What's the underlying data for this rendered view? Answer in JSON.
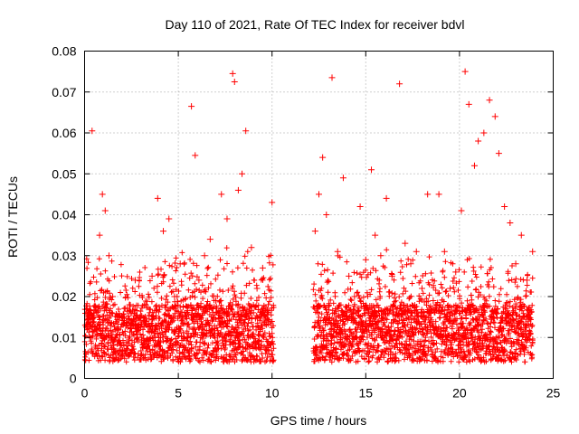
{
  "chart_data": {
    "type": "scatter",
    "title": "Day 110 of 2021, Rate Of TEC Index for receiver bdvl",
    "xlabel": "GPS time / hours",
    "ylabel": "ROTI / TECUs",
    "xlim": [
      0,
      25
    ],
    "ylim": [
      0,
      0.08
    ],
    "xticks": [
      0,
      5,
      10,
      15,
      20,
      25
    ],
    "yticks": [
      0,
      0.01,
      0.02,
      0.03,
      0.04,
      0.05,
      0.06,
      0.07,
      0.08
    ],
    "xtick_labels": [
      "0",
      "5",
      "10",
      "15",
      "20",
      "25"
    ],
    "ytick_labels": [
      "0",
      "0.01",
      "0.02",
      "0.03",
      "0.04",
      "0.05",
      "0.06",
      "0.07",
      "0.08"
    ],
    "grid": true,
    "marker": "+",
    "color": "#ff0000",
    "series": [
      {
        "x": [
          0.15,
          0.4,
          0.8,
          0.95,
          1.1,
          1.3,
          1.5,
          1.8,
          2.1,
          2.4,
          2.7,
          3.0,
          3.3,
          3.6,
          3.9,
          4.2,
          4.5,
          4.8,
          5.1,
          5.4,
          5.7,
          5.9,
          6.1,
          6.4,
          6.7,
          7.0,
          7.3,
          7.6,
          7.9,
          8.0,
          8.2,
          8.4,
          8.6,
          8.9,
          9.2,
          9.5,
          9.8,
          10.0,
          12.3,
          12.5,
          12.7,
          12.9,
          13.2,
          13.5,
          13.8,
          14.1,
          14.4,
          14.7,
          15.0,
          15.3,
          15.5,
          15.8,
          16.1,
          16.4,
          16.8,
          17.1,
          17.4,
          17.7,
          18.0,
          18.3,
          18.6,
          18.9,
          19.2,
          19.5,
          19.8,
          20.1,
          20.3,
          20.5,
          20.8,
          21.0,
          21.3,
          21.6,
          21.9,
          22.1,
          22.4,
          22.7,
          23.0,
          23.3,
          23.6,
          23.9
        ],
        "y": [
          0.015,
          0.0605,
          0.035,
          0.045,
          0.041,
          0.03,
          0.02,
          0.012,
          0.008,
          0.018,
          0.024,
          0.015,
          0.009,
          0.025,
          0.044,
          0.036,
          0.039,
          0.02,
          0.028,
          0.015,
          0.0665,
          0.0545,
          0.024,
          0.03,
          0.034,
          0.019,
          0.045,
          0.039,
          0.0745,
          0.0725,
          0.046,
          0.05,
          0.0605,
          0.032,
          0.022,
          0.027,
          0.018,
          0.043,
          0.036,
          0.045,
          0.054,
          0.04,
          0.0735,
          0.031,
          0.049,
          0.025,
          0.02,
          0.042,
          0.029,
          0.051,
          0.035,
          0.03,
          0.044,
          0.025,
          0.072,
          0.033,
          0.028,
          0.031,
          0.022,
          0.045,
          0.019,
          0.045,
          0.031,
          0.022,
          0.026,
          0.041,
          0.075,
          0.067,
          0.052,
          0.058,
          0.06,
          0.068,
          0.064,
          0.055,
          0.042,
          0.038,
          0.028,
          0.035,
          0.024,
          0.031
        ]
      }
    ]
  }
}
